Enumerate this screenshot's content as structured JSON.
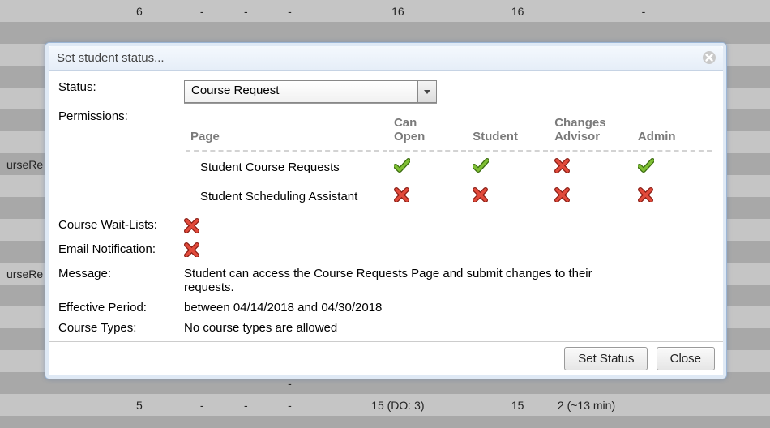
{
  "bg": {
    "row1": {
      "c1": "6",
      "c2": "-",
      "c3": "-",
      "c4": "-",
      "c5": "16",
      "c6": "16",
      "c7": "-"
    },
    "rowA_label": "urseRe",
    "rowB_label": "urseRe",
    "mid": {
      "c4": "-"
    },
    "rowLast": {
      "c1": "5",
      "c2": "-",
      "c3": "-",
      "c4": "-",
      "c5": "15 (DO: 3)",
      "c6": "15",
      "c7": "2 (~13 min)"
    }
  },
  "modal": {
    "title": "Set student status...",
    "labels": {
      "status": "Status:",
      "permissions": "Permissions:",
      "wait": "Course Wait-Lists:",
      "email": "Email Notification:",
      "message": "Message:",
      "effective": "Effective Period:",
      "types": "Course Types:"
    },
    "status_value": "Course Request",
    "perm_headers": {
      "page": "Page",
      "open": "Can Open",
      "student": "Student",
      "advisor": "Changes Advisor",
      "admin": "Admin"
    },
    "perm_rows": [
      {
        "page": "Student Course Requests",
        "open": true,
        "student": true,
        "advisor": false,
        "admin": true
      },
      {
        "page": "Student Scheduling Assistant",
        "open": false,
        "student": false,
        "advisor": false,
        "admin": false
      }
    ],
    "wait_value": false,
    "email_value": false,
    "message_value": "Student can access the Course Requests Page and submit changes to their requests.",
    "effective_value": "between 04/14/2018 and 04/30/2018",
    "types_value": "No course types are allowed",
    "buttons": {
      "set": "Set Status",
      "close": "Close"
    }
  },
  "style": {
    "check_color": "#6fa52a",
    "check_shadow": "#3a6b0e",
    "cross_color": "#d9362a",
    "cross_shadow": "#8a1d14",
    "modal_border": "#9cb6d6"
  }
}
